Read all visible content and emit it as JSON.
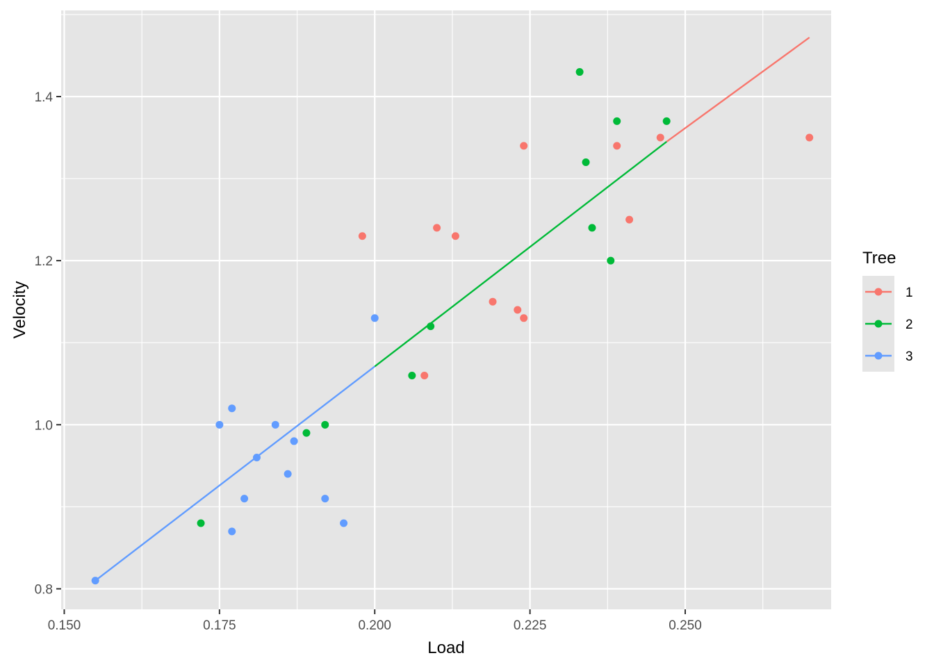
{
  "chart_data": {
    "type": "scatter",
    "title": "",
    "xlabel": "Load",
    "ylabel": "Velocity",
    "xlim": [
      0.1495,
      0.2735
    ],
    "ylim": [
      0.775,
      1.505
    ],
    "x_ticks": [
      0.15,
      0.175,
      0.2,
      0.225,
      0.25
    ],
    "x_tick_labels": [
      "0.150",
      "0.175",
      "0.200",
      "0.225",
      "0.250"
    ],
    "y_ticks": [
      0.8,
      1.0,
      1.2,
      1.4
    ],
    "y_tick_labels": [
      "0.8",
      "1.0",
      "1.2",
      "1.4"
    ],
    "grid": true,
    "background": "#e5e5e5",
    "legend": {
      "title": "Tree",
      "position": "right"
    },
    "series": [
      {
        "name": "1",
        "color": "#F8766D",
        "points": [
          [
            0.198,
            1.23
          ],
          [
            0.208,
            1.06
          ],
          [
            0.21,
            1.24
          ],
          [
            0.213,
            1.23
          ],
          [
            0.219,
            1.15
          ],
          [
            0.223,
            1.14
          ],
          [
            0.224,
            1.13
          ],
          [
            0.224,
            1.34
          ],
          [
            0.239,
            1.34
          ],
          [
            0.241,
            1.25
          ],
          [
            0.246,
            1.35
          ],
          [
            0.27,
            1.35
          ]
        ],
        "fit_line": [
          [
            0.247,
            1.345
          ],
          [
            0.27,
            1.472
          ]
        ]
      },
      {
        "name": "2",
        "color": "#00BA38",
        "points": [
          [
            0.172,
            0.88
          ],
          [
            0.189,
            0.99
          ],
          [
            0.192,
            1.0
          ],
          [
            0.206,
            1.06
          ],
          [
            0.209,
            1.12
          ],
          [
            0.233,
            1.43
          ],
          [
            0.234,
            1.32
          ],
          [
            0.235,
            1.24
          ],
          [
            0.238,
            1.2
          ],
          [
            0.239,
            1.37
          ],
          [
            0.247,
            1.37
          ]
        ],
        "fit_line": [
          [
            0.2,
            1.071
          ],
          [
            0.247,
            1.345
          ]
        ]
      },
      {
        "name": "3",
        "color": "#619CFF",
        "points": [
          [
            0.155,
            0.81
          ],
          [
            0.175,
            1.0
          ],
          [
            0.177,
            1.02
          ],
          [
            0.177,
            0.87
          ],
          [
            0.179,
            0.91
          ],
          [
            0.181,
            0.96
          ],
          [
            0.184,
            1.0
          ],
          [
            0.186,
            0.94
          ],
          [
            0.187,
            0.98
          ],
          [
            0.192,
            0.91
          ],
          [
            0.195,
            0.88
          ],
          [
            0.2,
            1.13
          ]
        ],
        "fit_line": [
          [
            0.155,
            0.81
          ],
          [
            0.2,
            1.071
          ]
        ]
      }
    ]
  }
}
